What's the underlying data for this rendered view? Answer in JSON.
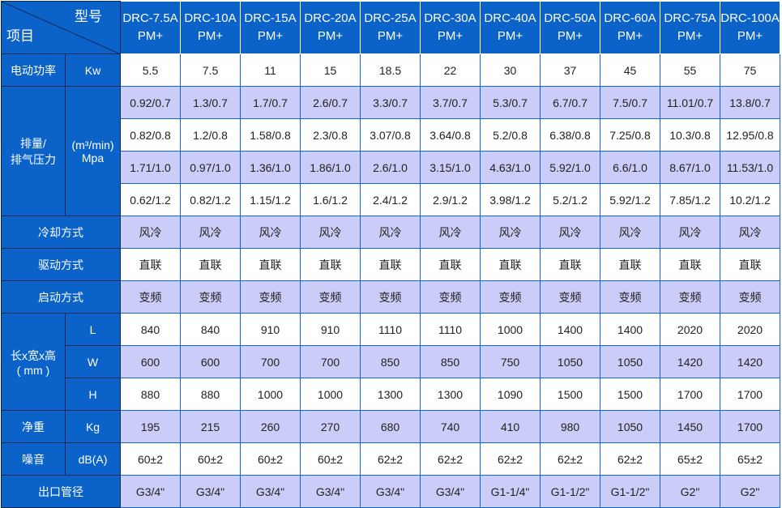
{
  "header": {
    "corner_top": "型号",
    "corner_bottom": "项目",
    "models": [
      [
        "DRC-7.5A",
        "PM+"
      ],
      [
        "DRC-10A",
        "PM+"
      ],
      [
        "DRC-15A",
        "PM+"
      ],
      [
        "DRC-20A",
        "PM+"
      ],
      [
        "DRC-25A",
        "PM+"
      ],
      [
        "DRC-30A",
        "PM+"
      ],
      [
        "DRC-40A",
        "PM+"
      ],
      [
        "DRC-50A",
        "PM+"
      ],
      [
        "DRC-60A",
        "PM+"
      ],
      [
        "DRC-75A",
        "PM+"
      ],
      [
        "DRC-100A",
        "PM+"
      ]
    ]
  },
  "colors": {
    "header_blue": "#0b63c9",
    "lavender": "#ccccf8",
    "grid": "#1565c8"
  },
  "rows": [
    {
      "label": "电动功率",
      "unit": "Kw",
      "values": [
        "5.5",
        "7.5",
        "11",
        "15",
        "18.5",
        "22",
        "30",
        "37",
        "45",
        "55",
        "75"
      ]
    },
    {
      "label": "排量/\n排气压力",
      "unit": "(m³/min)\nMpa",
      "values": [
        "0.92/0.7",
        "1.3/0.7",
        "1.7/0.7",
        "2.6/0.7",
        "3.3/0.7",
        "3.7/0.7",
        "5.3/0.7",
        "6.7/0.7",
        "7.5/0.7",
        "11.01/0.7",
        "13.8/0.7"
      ]
    },
    {
      "values": [
        "0.82/0.8",
        "1.2/0.8",
        "1.58/0.8",
        "2.3/0.8",
        "3.07/0.8",
        "3.64/0.8",
        "5.2/0.8",
        "6.38/0.8",
        "7.25/0.8",
        "10.3/0.8",
        "12.95/0.8"
      ]
    },
    {
      "values": [
        "1.71/1.0",
        "0.97/1.0",
        "1.36/1.0",
        "1.86/1.0",
        "2.6/1.0",
        "3.15/1.0",
        "4.63/1.0",
        "5.92/1.0",
        "6.6/1.0",
        "8.67/1.0",
        "11.53/1.0"
      ]
    },
    {
      "values": [
        "0.62/1.2",
        "0.82/1.2",
        "1.15/1.2",
        "1.6/1.2",
        "2.4/1.2",
        "2.9/1.2",
        "3.98/1.2",
        "5.2/1.2",
        "5.92/1.2",
        "7.85/1.2",
        "10.2/1.2"
      ]
    },
    {
      "label": "冷却方式",
      "values": [
        "风冷",
        "风冷",
        "风冷",
        "风冷",
        "风冷",
        "风冷",
        "风冷",
        "风冷",
        "风冷",
        "风冷",
        "风冷"
      ]
    },
    {
      "label": "驱动方式",
      "values": [
        "直联",
        "直联",
        "直联",
        "直联",
        "直联",
        "直联",
        "直联",
        "直联",
        "直联",
        "直联",
        "直联"
      ]
    },
    {
      "label": "启动方式",
      "values": [
        "变频",
        "变频",
        "变频",
        "变频",
        "变频",
        "变频",
        "变频",
        "变频",
        "变频",
        "变频",
        "变频"
      ]
    },
    {
      "label": "长x宽x高\n( mm )",
      "unit": "L",
      "values": [
        "840",
        "840",
        "910",
        "910",
        "1110",
        "1110",
        "1000",
        "1400",
        "1400",
        "2020",
        "2020"
      ]
    },
    {
      "unit": "W",
      "values": [
        "600",
        "600",
        "700",
        "700",
        "850",
        "850",
        "750",
        "1050",
        "1050",
        "1420",
        "1420"
      ]
    },
    {
      "unit": "H",
      "values": [
        "880",
        "880",
        "1000",
        "1000",
        "1300",
        "1300",
        "1090",
        "1500",
        "1500",
        "1700",
        "1700"
      ]
    },
    {
      "label": "净重",
      "unit": "Kg",
      "values": [
        "195",
        "215",
        "260",
        "270",
        "680",
        "740",
        "410",
        "980",
        "1050",
        "1450",
        "1700"
      ]
    },
    {
      "label": "噪音",
      "unit": "dB(A)",
      "values": [
        "60±2",
        "60±2",
        "60±2",
        "60±2",
        "62±2",
        "62±2",
        "62±2",
        "62±2",
        "62±2",
        "65±2",
        "65±2"
      ]
    },
    {
      "label": "出口管径",
      "values": [
        "G3/4\"",
        "G3/4\"",
        "G3/4\"",
        "G3/4\"",
        "G3/4\"",
        "G3/4\"",
        "G1-1/4\"",
        "G1-1/2\"",
        "G1-1/2\"",
        "G2\"",
        "G2\""
      ]
    }
  ]
}
